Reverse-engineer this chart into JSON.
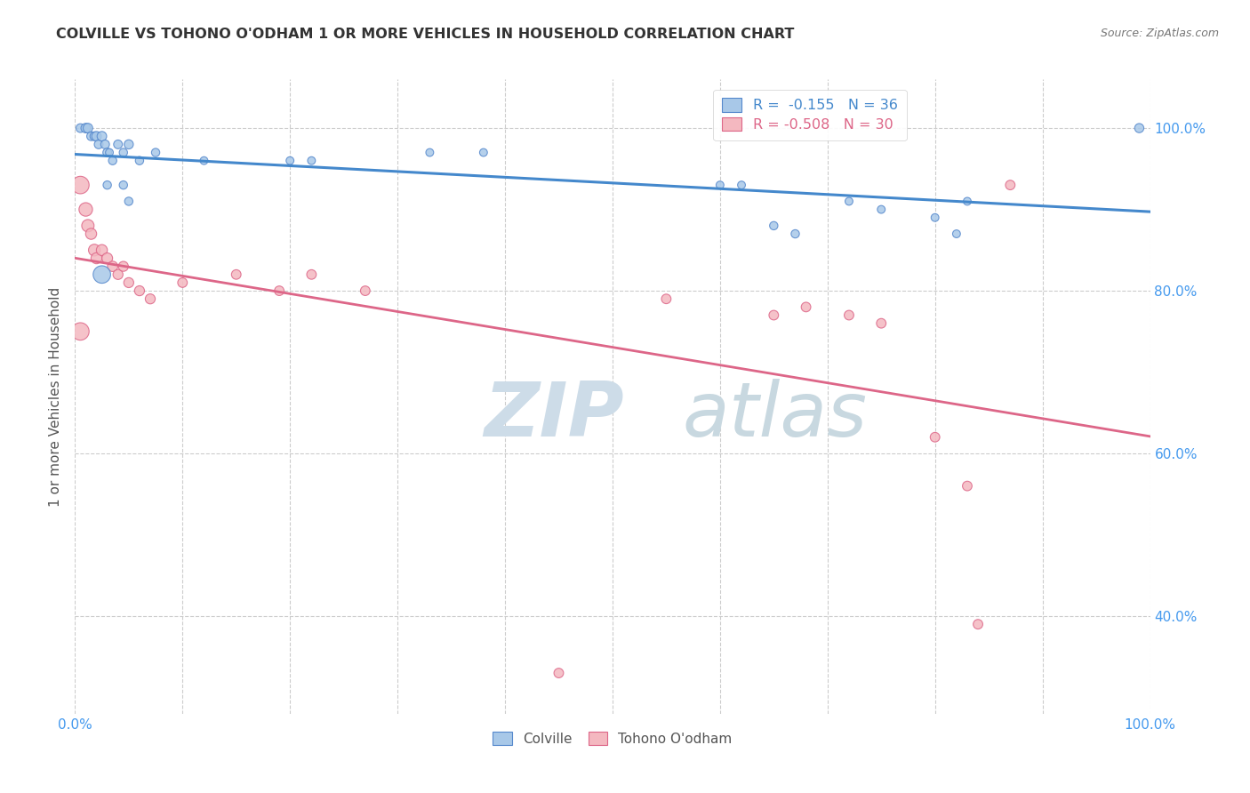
{
  "title": "COLVILLE VS TOHONO O'ODHAM 1 OR MORE VEHICLES IN HOUSEHOLD CORRELATION CHART",
  "source": "Source: ZipAtlas.com",
  "ylabel": "1 or more Vehicles in Household",
  "xlim": [
    0.0,
    1.0
  ],
  "ylim": [
    0.28,
    1.06
  ],
  "yticks": [
    0.4,
    0.6,
    0.8,
    1.0
  ],
  "ytick_labels": [
    "40.0%",
    "60.0%",
    "80.0%",
    "100.0%"
  ],
  "xticks": [
    0.0,
    0.1,
    0.2,
    0.3,
    0.4,
    0.5,
    0.6,
    0.7,
    0.8,
    0.9,
    1.0
  ],
  "xtick_labels": [
    "0.0%",
    "",
    "",
    "",
    "",
    "",
    "",
    "",
    "",
    "",
    "100.0%"
  ],
  "colville_R": -0.155,
  "colville_N": 36,
  "tohono_R": -0.508,
  "tohono_N": 30,
  "colville_color": "#a8c8e8",
  "tohono_color": "#f4b8c0",
  "colville_edge_color": "#5588cc",
  "tohono_edge_color": "#dd6688",
  "colville_line_color": "#4488cc",
  "tohono_line_color": "#dd6688",
  "watermark_zip": "ZIP",
  "watermark_atlas": "atlas",
  "watermark_color_zip": "#c5d8ea",
  "watermark_color_atlas": "#c5d8ea",
  "colville_scatter": [
    [
      0.005,
      1.0
    ],
    [
      0.01,
      1.0
    ],
    [
      0.012,
      1.0
    ],
    [
      0.015,
      0.99
    ],
    [
      0.018,
      0.99
    ],
    [
      0.02,
      0.99
    ],
    [
      0.022,
      0.98
    ],
    [
      0.025,
      0.99
    ],
    [
      0.028,
      0.98
    ],
    [
      0.03,
      0.97
    ],
    [
      0.032,
      0.97
    ],
    [
      0.035,
      0.96
    ],
    [
      0.04,
      0.98
    ],
    [
      0.045,
      0.97
    ],
    [
      0.05,
      0.98
    ],
    [
      0.06,
      0.96
    ],
    [
      0.075,
      0.97
    ],
    [
      0.12,
      0.96
    ],
    [
      0.03,
      0.93
    ],
    [
      0.045,
      0.93
    ],
    [
      0.05,
      0.91
    ],
    [
      0.2,
      0.96
    ],
    [
      0.22,
      0.96
    ],
    [
      0.33,
      0.97
    ],
    [
      0.38,
      0.97
    ],
    [
      0.6,
      0.93
    ],
    [
      0.62,
      0.93
    ],
    [
      0.65,
      0.88
    ],
    [
      0.67,
      0.87
    ],
    [
      0.72,
      0.91
    ],
    [
      0.75,
      0.9
    ],
    [
      0.8,
      0.89
    ],
    [
      0.82,
      0.87
    ],
    [
      0.83,
      0.91
    ],
    [
      0.99,
      1.0
    ],
    [
      0.025,
      0.82
    ]
  ],
  "colville_sizes": [
    50,
    60,
    60,
    50,
    50,
    60,
    50,
    60,
    50,
    50,
    40,
    45,
    50,
    45,
    55,
    45,
    45,
    40,
    45,
    45,
    45,
    40,
    40,
    40,
    40,
    40,
    40,
    45,
    45,
    40,
    40,
    40,
    40,
    40,
    55,
    200
  ],
  "tohono_scatter": [
    [
      0.005,
      0.93
    ],
    [
      0.01,
      0.9
    ],
    [
      0.012,
      0.88
    ],
    [
      0.015,
      0.87
    ],
    [
      0.018,
      0.85
    ],
    [
      0.02,
      0.84
    ],
    [
      0.025,
      0.85
    ],
    [
      0.03,
      0.84
    ],
    [
      0.035,
      0.83
    ],
    [
      0.04,
      0.82
    ],
    [
      0.045,
      0.83
    ],
    [
      0.05,
      0.81
    ],
    [
      0.06,
      0.8
    ],
    [
      0.07,
      0.79
    ],
    [
      0.1,
      0.81
    ],
    [
      0.15,
      0.82
    ],
    [
      0.19,
      0.8
    ],
    [
      0.22,
      0.82
    ],
    [
      0.27,
      0.8
    ],
    [
      0.45,
      0.33
    ],
    [
      0.55,
      0.79
    ],
    [
      0.65,
      0.77
    ],
    [
      0.68,
      0.78
    ],
    [
      0.72,
      0.77
    ],
    [
      0.75,
      0.76
    ],
    [
      0.8,
      0.62
    ],
    [
      0.83,
      0.56
    ],
    [
      0.87,
      0.93
    ],
    [
      0.84,
      0.39
    ],
    [
      0.005,
      0.75
    ]
  ],
  "tohono_sizes": [
    200,
    120,
    100,
    80,
    90,
    80,
    80,
    75,
    70,
    65,
    65,
    65,
    65,
    65,
    60,
    60,
    60,
    60,
    60,
    60,
    60,
    60,
    60,
    60,
    60,
    60,
    60,
    60,
    60,
    200
  ]
}
